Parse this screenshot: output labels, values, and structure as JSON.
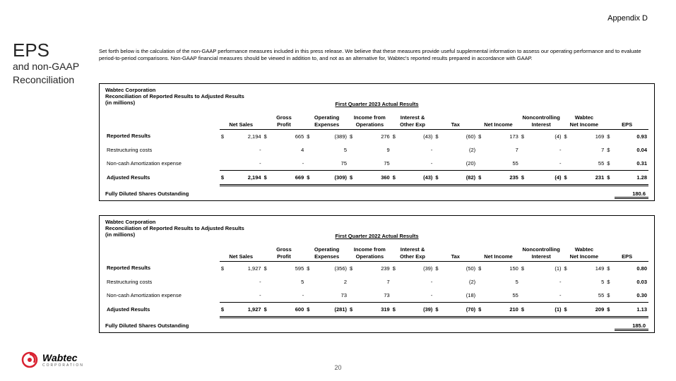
{
  "appendix": "Appendix D",
  "title": {
    "main": "EPS",
    "sub1": "and non-GAAP",
    "sub2": "Reconciliation"
  },
  "intro": "Set forth below is the calculation of the non-GAAP performance measures included in this press release.  We believe that these measures provide useful supplemental information to assess our operating performance and to evaluate period-to-period comparisons.  Non-GAAP financial measures should be viewed in addition to, and not as an alternative for, Wabtec's reported results prepared in accordance with GAAP.",
  "tables": [
    {
      "corp": "Wabtec Corporation",
      "recon": "Reconciliation of Reported Results to Adjusted Results",
      "inmil": "(in millions)",
      "period": "First Quarter 2023 Actual Results",
      "headers": [
        [
          "",
          "Gross",
          "Operating",
          "Income from",
          "Interest &",
          "",
          "",
          "Noncontrolling",
          "Wabtec",
          ""
        ],
        [
          "Net Sales",
          "Profit",
          "Expenses",
          "Operations",
          "Other Exp",
          "Tax",
          "Net Income",
          "Interest",
          "Net Income",
          "EPS"
        ]
      ],
      "rows": [
        {
          "lbl": "Reported Results",
          "bold": true,
          "vals": [
            [
              "$",
              "2,194"
            ],
            [
              "$",
              "665"
            ],
            [
              "$",
              "(389)"
            ],
            [
              "$",
              "276"
            ],
            [
              "$",
              "(43)"
            ],
            [
              "$",
              "(60)"
            ],
            [
              "$",
              "173"
            ],
            [
              "$",
              "(4)"
            ],
            [
              "$",
              "169"
            ],
            [
              "$",
              "0.93"
            ]
          ]
        },
        {
          "lbl": "Restructuring costs",
          "bold": false,
          "vals": [
            [
              "",
              "-"
            ],
            [
              "",
              "4"
            ],
            [
              "",
              "5"
            ],
            [
              "",
              "9"
            ],
            [
              "",
              "-"
            ],
            [
              "",
              "(2)"
            ],
            [
              "",
              "7"
            ],
            [
              "",
              "-"
            ],
            [
              "",
              "7"
            ],
            [
              "$",
              "0.04"
            ]
          ]
        },
        {
          "lbl": "Non-cash Amortization expense",
          "bold": false,
          "vals": [
            [
              "",
              "-"
            ],
            [
              "",
              "-"
            ],
            [
              "",
              "75"
            ],
            [
              "",
              "75"
            ],
            [
              "",
              "-"
            ],
            [
              "",
              "(20)"
            ],
            [
              "",
              "55"
            ],
            [
              "",
              "-"
            ],
            [
              "",
              "55"
            ],
            [
              "$",
              "0.31"
            ]
          ]
        }
      ],
      "adjusted": {
        "lbl": "Adjusted Results",
        "vals": [
          [
            "$",
            "2,194"
          ],
          [
            "$",
            "669"
          ],
          [
            "$",
            "(309)"
          ],
          [
            "$",
            "360"
          ],
          [
            "$",
            "(43)"
          ],
          [
            "$",
            "(82)"
          ],
          [
            "$",
            "235"
          ],
          [
            "$",
            "(4)"
          ],
          [
            "$",
            "231"
          ],
          [
            "$",
            "1.28"
          ]
        ]
      },
      "fdso": {
        "lbl": "Fully Diluted Shares Outstanding",
        "val": "180.6"
      }
    },
    {
      "corp": "Wabtec Corporation",
      "recon": "Reconciliation of Reported Results to Adjusted Results",
      "inmil": "(in millions)",
      "period": "First Quarter 2022 Actual Results",
      "headers": [
        [
          "",
          "Gross",
          "Operating",
          "Income from",
          "Interest &",
          "",
          "",
          "Noncontrolling",
          "Wabtec",
          ""
        ],
        [
          "Net Sales",
          "Profit",
          "Expenses",
          "Operations",
          "Other Exp",
          "Tax",
          "Net Income",
          "Interest",
          "Net Income",
          "EPS"
        ]
      ],
      "rows": [
        {
          "lbl": "Reported Results",
          "bold": true,
          "vals": [
            [
              "$",
              "1,927"
            ],
            [
              "$",
              "595"
            ],
            [
              "$",
              "(356)"
            ],
            [
              "$",
              "239"
            ],
            [
              "$",
              "(39)"
            ],
            [
              "$",
              "(50)"
            ],
            [
              "$",
              "150"
            ],
            [
              "$",
              "(1)"
            ],
            [
              "$",
              "149"
            ],
            [
              "$",
              "0.80"
            ]
          ]
        },
        {
          "lbl": "Restructuring costs",
          "bold": false,
          "vals": [
            [
              "",
              "-"
            ],
            [
              "",
              "5"
            ],
            [
              "",
              "2"
            ],
            [
              "",
              "7"
            ],
            [
              "",
              "-"
            ],
            [
              "",
              "(2)"
            ],
            [
              "",
              "5"
            ],
            [
              "",
              "-"
            ],
            [
              "",
              "5"
            ],
            [
              "$",
              "0.03"
            ]
          ]
        },
        {
          "lbl": "Non-cash Amortization expense",
          "bold": false,
          "vals": [
            [
              "",
              "-"
            ],
            [
              "",
              "-"
            ],
            [
              "",
              "73"
            ],
            [
              "",
              "73"
            ],
            [
              "",
              "-"
            ],
            [
              "",
              "(18)"
            ],
            [
              "",
              "55"
            ],
            [
              "",
              "-"
            ],
            [
              "",
              "55"
            ],
            [
              "$",
              "0.30"
            ]
          ]
        }
      ],
      "adjusted": {
        "lbl": "Adjusted Results",
        "vals": [
          [
            "$",
            "1,927"
          ],
          [
            "$",
            "600"
          ],
          [
            "$",
            "(281)"
          ],
          [
            "$",
            "319"
          ],
          [
            "$",
            "(39)"
          ],
          [
            "$",
            "(70)"
          ],
          [
            "$",
            "210"
          ],
          [
            "$",
            "(1)"
          ],
          [
            "$",
            "209"
          ],
          [
            "$",
            "1.13"
          ]
        ]
      },
      "fdso": {
        "lbl": "Fully Diluted Shares Outstanding",
        "val": "185.0"
      }
    }
  ],
  "logo": {
    "name": "Wabtec",
    "sub": "CORPORATION"
  },
  "page": "20",
  "colors": {
    "accent": "#d92231"
  }
}
